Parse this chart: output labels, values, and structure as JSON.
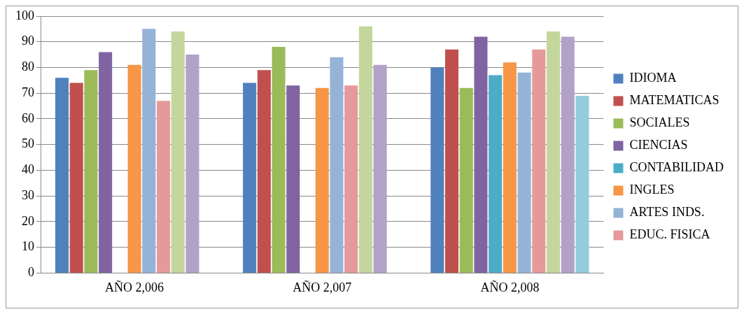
{
  "chart_data": {
    "type": "bar",
    "categories": [
      "AÑO 2,006",
      "AÑO 2,007",
      "AÑO 2,008"
    ],
    "series": [
      {
        "name": "IDIOMA",
        "color": "#4f81bd",
        "values": [
          76,
          74,
          80
        ]
      },
      {
        "name": "MATEMATICAS",
        "color": "#c0504d",
        "values": [
          74,
          79,
          87
        ]
      },
      {
        "name": "SOCIALES",
        "color": "#9bbb59",
        "values": [
          79,
          88,
          72
        ]
      },
      {
        "name": "CIENCIAS",
        "color": "#8064a2",
        "values": [
          86,
          73,
          92
        ]
      },
      {
        "name": "CONTABILIDAD",
        "color": "#4bacc6",
        "values": [
          null,
          null,
          77
        ]
      },
      {
        "name": "INGLES",
        "color": "#f79646",
        "values": [
          81,
          72,
          82
        ]
      },
      {
        "name": "ARTES INDS.",
        "color": "#95b3d7",
        "values": [
          95,
          84,
          78
        ]
      },
      {
        "name": "EDUC. FISICA",
        "color": "#e6999a",
        "values": [
          67,
          73,
          87
        ]
      },
      {
        "color": "#c3d69b",
        "values": [
          94,
          96,
          94
        ]
      },
      {
        "color": "#b3a2c7",
        "values": [
          85,
          81,
          92
        ]
      },
      {
        "color": "#93cddd",
        "values": [
          null,
          null,
          69
        ]
      }
    ],
    "ylim": [
      0,
      100
    ],
    "yticks": [
      0,
      10,
      20,
      30,
      40,
      50,
      60,
      70,
      80,
      90,
      100
    ],
    "grid": "y",
    "legend": "right"
  }
}
